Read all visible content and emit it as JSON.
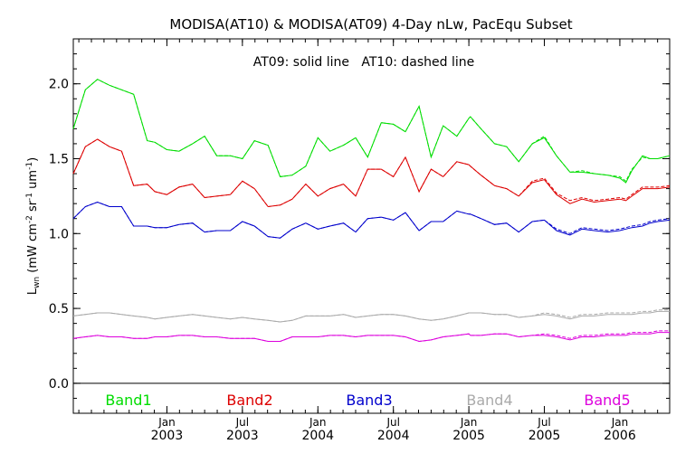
{
  "chart_data": {
    "type": "line",
    "title": "MODISA(AT10) & MODISA(AT09) 4-Day nLw, PacEqu Subset",
    "annotation": "AT09: solid line   AT10: dashed line",
    "ylabel": {
      "base": "L",
      "sub": "wn",
      "units_prefix": " (mW cm",
      "e1": "-2",
      "sr": " sr",
      "e2": "-1",
      "um": " um",
      "e3": "-1",
      "close": ")"
    },
    "xlabel": "",
    "ylim": [
      -0.2,
      2.3
    ],
    "xlim": [
      2002.38,
      2006.33
    ],
    "yticks": [
      0.0,
      0.5,
      1.0,
      1.5,
      2.0
    ],
    "ytick_labels": [
      "0.0",
      "0.5",
      "1.0",
      "1.5",
      "2.0"
    ],
    "xticks": [
      {
        "pos": 2003.0,
        "month": "Jan",
        "year": "2003"
      },
      {
        "pos": 2003.5,
        "month": "Jul",
        "year": "2003"
      },
      {
        "pos": 2004.0,
        "month": "Jan",
        "year": "2004"
      },
      {
        "pos": 2004.5,
        "month": "Jul",
        "year": "2004"
      },
      {
        "pos": 2005.0,
        "month": "Jan",
        "year": "2005"
      },
      {
        "pos": 2005.5,
        "month": "Jul",
        "year": "2005"
      },
      {
        "pos": 2006.0,
        "month": "Jan",
        "year": "2006"
      }
    ],
    "grid": false,
    "x": [
      2002.38,
      2002.46,
      2002.54,
      2002.62,
      2002.7,
      2002.78,
      2002.87,
      2002.92,
      2003.0,
      2003.08,
      2003.17,
      2003.25,
      2003.33,
      2003.42,
      2003.5,
      2003.58,
      2003.67,
      2003.75,
      2003.83,
      2003.92,
      2004.0,
      2004.08,
      2004.17,
      2004.25,
      2004.33,
      2004.42,
      2004.5,
      2004.58,
      2004.67,
      2004.75,
      2004.83,
      2004.92,
      2005.0,
      2005.01,
      2005.08,
      2005.17,
      2005.25,
      2005.33,
      2005.42,
      2005.5,
      2005.58,
      2005.67,
      2005.75,
      2005.83,
      2005.92,
      2006.0,
      2006.04,
      2006.08,
      2006.15,
      2006.2,
      2006.25,
      2006.33
    ],
    "series": [
      {
        "name": "Band1",
        "color": "#00dd00",
        "values": [
          1.7,
          1.96,
          2.03,
          1.99,
          1.96,
          1.93,
          1.62,
          1.61,
          1.56,
          1.55,
          1.6,
          1.65,
          1.52,
          1.52,
          1.5,
          1.62,
          1.59,
          1.38,
          1.39,
          1.45,
          1.64,
          1.55,
          1.59,
          1.64,
          1.51,
          1.74,
          1.73,
          1.68,
          1.85,
          1.51,
          1.72,
          1.65,
          1.77,
          1.78,
          1.7,
          1.6,
          1.58,
          1.48,
          1.6,
          1.64,
          1.52,
          1.41,
          1.41,
          1.4,
          1.39,
          1.37,
          1.34,
          1.42,
          1.52,
          1.5,
          1.5,
          1.52
        ],
        "values_at10": [
          1.7,
          1.96,
          2.03,
          1.99,
          1.96,
          1.93,
          1.62,
          1.61,
          1.56,
          1.55,
          1.6,
          1.65,
          1.52,
          1.52,
          1.5,
          1.62,
          1.59,
          1.38,
          1.39,
          1.45,
          1.64,
          1.55,
          1.59,
          1.64,
          1.51,
          1.74,
          1.73,
          1.68,
          1.85,
          1.51,
          1.72,
          1.65,
          1.77,
          1.78,
          1.7,
          1.6,
          1.58,
          1.48,
          1.6,
          1.65,
          1.52,
          1.41,
          1.42,
          1.4,
          1.39,
          1.38,
          1.35,
          1.43,
          1.51,
          1.5,
          1.5,
          1.52
        ]
      },
      {
        "name": "Band2",
        "color": "#dd0000",
        "values": [
          1.4,
          1.58,
          1.63,
          1.58,
          1.55,
          1.32,
          1.33,
          1.28,
          1.26,
          1.31,
          1.33,
          1.24,
          1.25,
          1.26,
          1.35,
          1.3,
          1.18,
          1.19,
          1.23,
          1.33,
          1.25,
          1.3,
          1.33,
          1.25,
          1.43,
          1.43,
          1.38,
          1.51,
          1.28,
          1.43,
          1.38,
          1.48,
          1.46,
          1.45,
          1.39,
          1.32,
          1.3,
          1.25,
          1.34,
          1.36,
          1.26,
          1.2,
          1.23,
          1.21,
          1.22,
          1.23,
          1.22,
          1.25,
          1.3,
          1.3,
          1.3,
          1.31
        ],
        "values_at10": [
          1.4,
          1.58,
          1.63,
          1.58,
          1.55,
          1.32,
          1.33,
          1.28,
          1.26,
          1.31,
          1.33,
          1.24,
          1.25,
          1.26,
          1.35,
          1.3,
          1.18,
          1.19,
          1.23,
          1.33,
          1.25,
          1.3,
          1.33,
          1.25,
          1.43,
          1.43,
          1.38,
          1.51,
          1.28,
          1.43,
          1.38,
          1.48,
          1.46,
          1.45,
          1.39,
          1.32,
          1.3,
          1.25,
          1.35,
          1.37,
          1.27,
          1.22,
          1.24,
          1.22,
          1.23,
          1.24,
          1.23,
          1.26,
          1.31,
          1.31,
          1.31,
          1.32
        ]
      },
      {
        "name": "Band3",
        "color": "#0000cc",
        "values": [
          1.1,
          1.18,
          1.21,
          1.18,
          1.18,
          1.05,
          1.05,
          1.04,
          1.04,
          1.06,
          1.07,
          1.01,
          1.02,
          1.02,
          1.08,
          1.05,
          0.98,
          0.97,
          1.03,
          1.07,
          1.03,
          1.05,
          1.07,
          1.01,
          1.1,
          1.11,
          1.09,
          1.14,
          1.02,
          1.08,
          1.08,
          1.15,
          1.13,
          1.13,
          1.1,
          1.06,
          1.07,
          1.01,
          1.08,
          1.09,
          1.02,
          0.99,
          1.03,
          1.02,
          1.01,
          1.02,
          1.03,
          1.04,
          1.05,
          1.07,
          1.08,
          1.09
        ],
        "values_at10": [
          1.1,
          1.18,
          1.21,
          1.18,
          1.18,
          1.05,
          1.05,
          1.04,
          1.04,
          1.06,
          1.07,
          1.01,
          1.02,
          1.02,
          1.08,
          1.05,
          0.98,
          0.97,
          1.03,
          1.07,
          1.03,
          1.05,
          1.07,
          1.01,
          1.1,
          1.11,
          1.09,
          1.14,
          1.02,
          1.08,
          1.08,
          1.15,
          1.13,
          1.13,
          1.1,
          1.06,
          1.07,
          1.01,
          1.08,
          1.09,
          1.03,
          1.0,
          1.04,
          1.03,
          1.02,
          1.03,
          1.04,
          1.05,
          1.06,
          1.08,
          1.09,
          1.1
        ]
      },
      {
        "name": "Band4",
        "color": "#aaaaaa",
        "values": [
          0.45,
          0.46,
          0.47,
          0.47,
          0.46,
          0.45,
          0.44,
          0.43,
          0.44,
          0.45,
          0.46,
          0.45,
          0.44,
          0.43,
          0.44,
          0.43,
          0.42,
          0.41,
          0.42,
          0.45,
          0.45,
          0.45,
          0.46,
          0.44,
          0.45,
          0.46,
          0.46,
          0.45,
          0.43,
          0.42,
          0.43,
          0.45,
          0.47,
          0.47,
          0.47,
          0.46,
          0.46,
          0.44,
          0.45,
          0.46,
          0.45,
          0.43,
          0.45,
          0.45,
          0.46,
          0.46,
          0.46,
          0.46,
          0.47,
          0.47,
          0.48,
          0.48
        ],
        "values_at10": [
          0.45,
          0.46,
          0.47,
          0.47,
          0.46,
          0.45,
          0.44,
          0.43,
          0.44,
          0.45,
          0.46,
          0.45,
          0.44,
          0.43,
          0.44,
          0.43,
          0.42,
          0.41,
          0.42,
          0.45,
          0.45,
          0.45,
          0.46,
          0.44,
          0.45,
          0.46,
          0.46,
          0.45,
          0.43,
          0.42,
          0.43,
          0.45,
          0.47,
          0.47,
          0.47,
          0.46,
          0.46,
          0.44,
          0.45,
          0.47,
          0.46,
          0.44,
          0.46,
          0.46,
          0.47,
          0.47,
          0.47,
          0.47,
          0.48,
          0.48,
          0.49,
          0.49
        ]
      },
      {
        "name": "Band5",
        "color": "#dd00dd",
        "values": [
          0.3,
          0.31,
          0.32,
          0.31,
          0.31,
          0.3,
          0.3,
          0.31,
          0.31,
          0.32,
          0.32,
          0.31,
          0.31,
          0.3,
          0.3,
          0.3,
          0.28,
          0.28,
          0.31,
          0.31,
          0.31,
          0.32,
          0.32,
          0.31,
          0.32,
          0.32,
          0.32,
          0.31,
          0.28,
          0.29,
          0.31,
          0.32,
          0.33,
          0.32,
          0.32,
          0.33,
          0.33,
          0.31,
          0.32,
          0.32,
          0.31,
          0.29,
          0.31,
          0.31,
          0.32,
          0.32,
          0.32,
          0.33,
          0.33,
          0.33,
          0.34,
          0.34
        ],
        "values_at10": [
          0.3,
          0.31,
          0.32,
          0.31,
          0.31,
          0.3,
          0.3,
          0.31,
          0.31,
          0.32,
          0.32,
          0.31,
          0.31,
          0.3,
          0.3,
          0.3,
          0.28,
          0.28,
          0.31,
          0.31,
          0.31,
          0.32,
          0.32,
          0.31,
          0.32,
          0.32,
          0.32,
          0.31,
          0.28,
          0.29,
          0.31,
          0.32,
          0.33,
          0.32,
          0.32,
          0.33,
          0.33,
          0.31,
          0.32,
          0.33,
          0.32,
          0.3,
          0.32,
          0.32,
          0.33,
          0.33,
          0.33,
          0.34,
          0.34,
          0.34,
          0.35,
          0.35
        ]
      }
    ],
    "legend": [
      {
        "label": "Band1",
        "color": "#00dd00"
      },
      {
        "label": "Band2",
        "color": "#dd0000"
      },
      {
        "label": "Band3",
        "color": "#0000cc"
      },
      {
        "label": "Band4",
        "color": "#aaaaaa"
      },
      {
        "label": "Band5",
        "color": "#dd00dd"
      }
    ],
    "legend_placement": "bottom-inside",
    "zero_line": true
  }
}
